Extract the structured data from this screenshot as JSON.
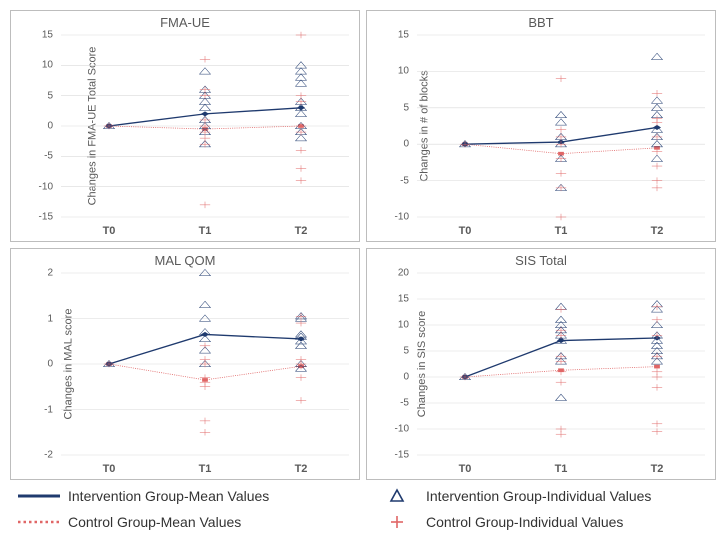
{
  "colors": {
    "intervention": "#1f3a6e",
    "control": "#e06666",
    "axis": "#bdbdbd",
    "tick_text": "#5a5a5a",
    "grid": "#d9d9d9"
  },
  "xcats": [
    "T0",
    "T1",
    "T2"
  ],
  "marker_size": 5,
  "line_width_intervention": 3,
  "line_width_control": 2,
  "panels": [
    {
      "title": "FMA-UE",
      "ylabel": "Changes in FMA-UE Total Score",
      "ylim": [
        -15,
        15
      ],
      "ytick_step": 5,
      "intervention_mean": [
        0,
        2,
        3
      ],
      "control_mean": [
        0,
        -0.5,
        0
      ],
      "intervention_points": {
        "T0": [
          0
        ],
        "T1": [
          -3,
          -1,
          0,
          1,
          3,
          4,
          5,
          6,
          9
        ],
        "T2": [
          -2,
          -1,
          0,
          2,
          3,
          4,
          7,
          8,
          9,
          10
        ]
      },
      "control_points": {
        "T0": [
          0
        ],
        "T1": [
          -13,
          -3,
          -2,
          -1,
          0,
          1,
          5,
          6,
          11
        ],
        "T2": [
          -9,
          -7,
          -4,
          -1,
          0,
          4,
          5,
          15
        ]
      }
    },
    {
      "title": "BBT",
      "ylabel": "Changes in # of blocks",
      "ylim": [
        -10,
        15
      ],
      "ytick_step": 5,
      "intervention_mean": [
        0,
        0.3,
        2.3
      ],
      "control_mean": [
        0,
        -1.3,
        -0.5
      ],
      "intervention_points": {
        "T0": [
          0
        ],
        "T1": [
          -6,
          -2,
          0,
          1,
          3,
          4
        ],
        "T2": [
          -2,
          0,
          1,
          2,
          4,
          5,
          6,
          12
        ]
      },
      "control_points": {
        "T0": [
          0
        ],
        "T1": [
          -10,
          -6,
          -4,
          -2,
          0,
          1,
          2,
          9
        ],
        "T2": [
          -6,
          -5,
          -3,
          -1,
          1,
          3,
          3.5,
          7
        ]
      }
    },
    {
      "title": "MAL QOM",
      "ylabel": "Changes in MAL score",
      "ylim": [
        -2,
        2
      ],
      "ytick_step": 1,
      "intervention_mean": [
        0,
        0.65,
        0.55
      ],
      "control_mean": [
        0,
        -0.35,
        -0.05
      ],
      "intervention_points": {
        "T0": [
          0
        ],
        "T1": [
          0,
          0.3,
          0.55,
          0.7,
          1.0,
          1.3,
          2.0
        ],
        "T2": [
          -0.1,
          0,
          0.4,
          0.5,
          0.6,
          0.65,
          1.0,
          1.05
        ]
      },
      "control_points": {
        "T0": [
          0
        ],
        "T1": [
          -1.5,
          -1.25,
          -0.5,
          -0.4,
          -0.3,
          0,
          0.1,
          0.4
        ],
        "T2": [
          -0.8,
          -0.3,
          -0.05,
          0,
          0.1,
          0.9,
          1.05
        ]
      }
    },
    {
      "title": "SIS Total",
      "ylabel": "Changes in SIS score",
      "ylim": [
        -15,
        20
      ],
      "ytick_step": 5,
      "intervention_mean": [
        0,
        7,
        7.5
      ],
      "control_mean": [
        0,
        1.3,
        2
      ],
      "intervention_points": {
        "T0": [
          0
        ],
        "T1": [
          -4,
          3,
          4,
          7,
          8,
          9,
          10,
          11,
          13.5
        ],
        "T2": [
          3,
          4,
          5,
          6,
          7,
          8,
          10,
          13,
          14
        ]
      },
      "control_points": {
        "T0": [
          0
        ],
        "T1": [
          -11,
          -10,
          -1,
          1,
          3,
          4,
          8,
          9,
          13
        ],
        "T2": [
          -10.5,
          -9,
          -2,
          0,
          1,
          4,
          8,
          11,
          13.5
        ]
      }
    }
  ],
  "legend": {
    "int_mean": "Intervention Group-Mean Values",
    "int_ind": "Intervention Group-Individual Values",
    "ctrl_mean": "Control Group-Mean Values",
    "ctrl_ind": "Control Group-Individual Values"
  }
}
